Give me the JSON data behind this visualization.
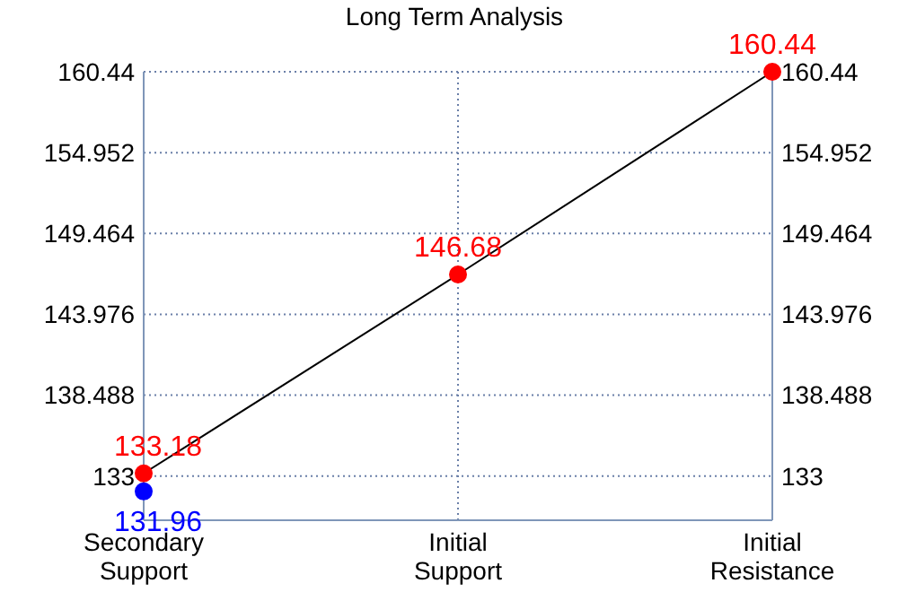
{
  "chart_data": {
    "type": "line",
    "title": "Long Term Analysis",
    "categories": [
      "Secondary Support",
      "Initial Support",
      "Initial Resistance"
    ],
    "series": [
      {
        "color": "#ff0000",
        "values": [
          133.18,
          146.68,
          160.44
        ],
        "marker": "circle"
      },
      {
        "type": "scatter",
        "color": "#0000ff",
        "values": [
          131.96,
          null,
          null
        ],
        "marker": "circle"
      }
    ],
    "ylim": [
      130,
      160.44
    ],
    "yticks": [
      133,
      138.488,
      143.976,
      149.464,
      154.952,
      160.44
    ],
    "y2lim": [
      130,
      160.44
    ],
    "y2ticks": [
      133,
      138.488,
      143.976,
      149.464,
      154.952,
      160.44
    ],
    "grid": true,
    "data_labels": true
  }
}
